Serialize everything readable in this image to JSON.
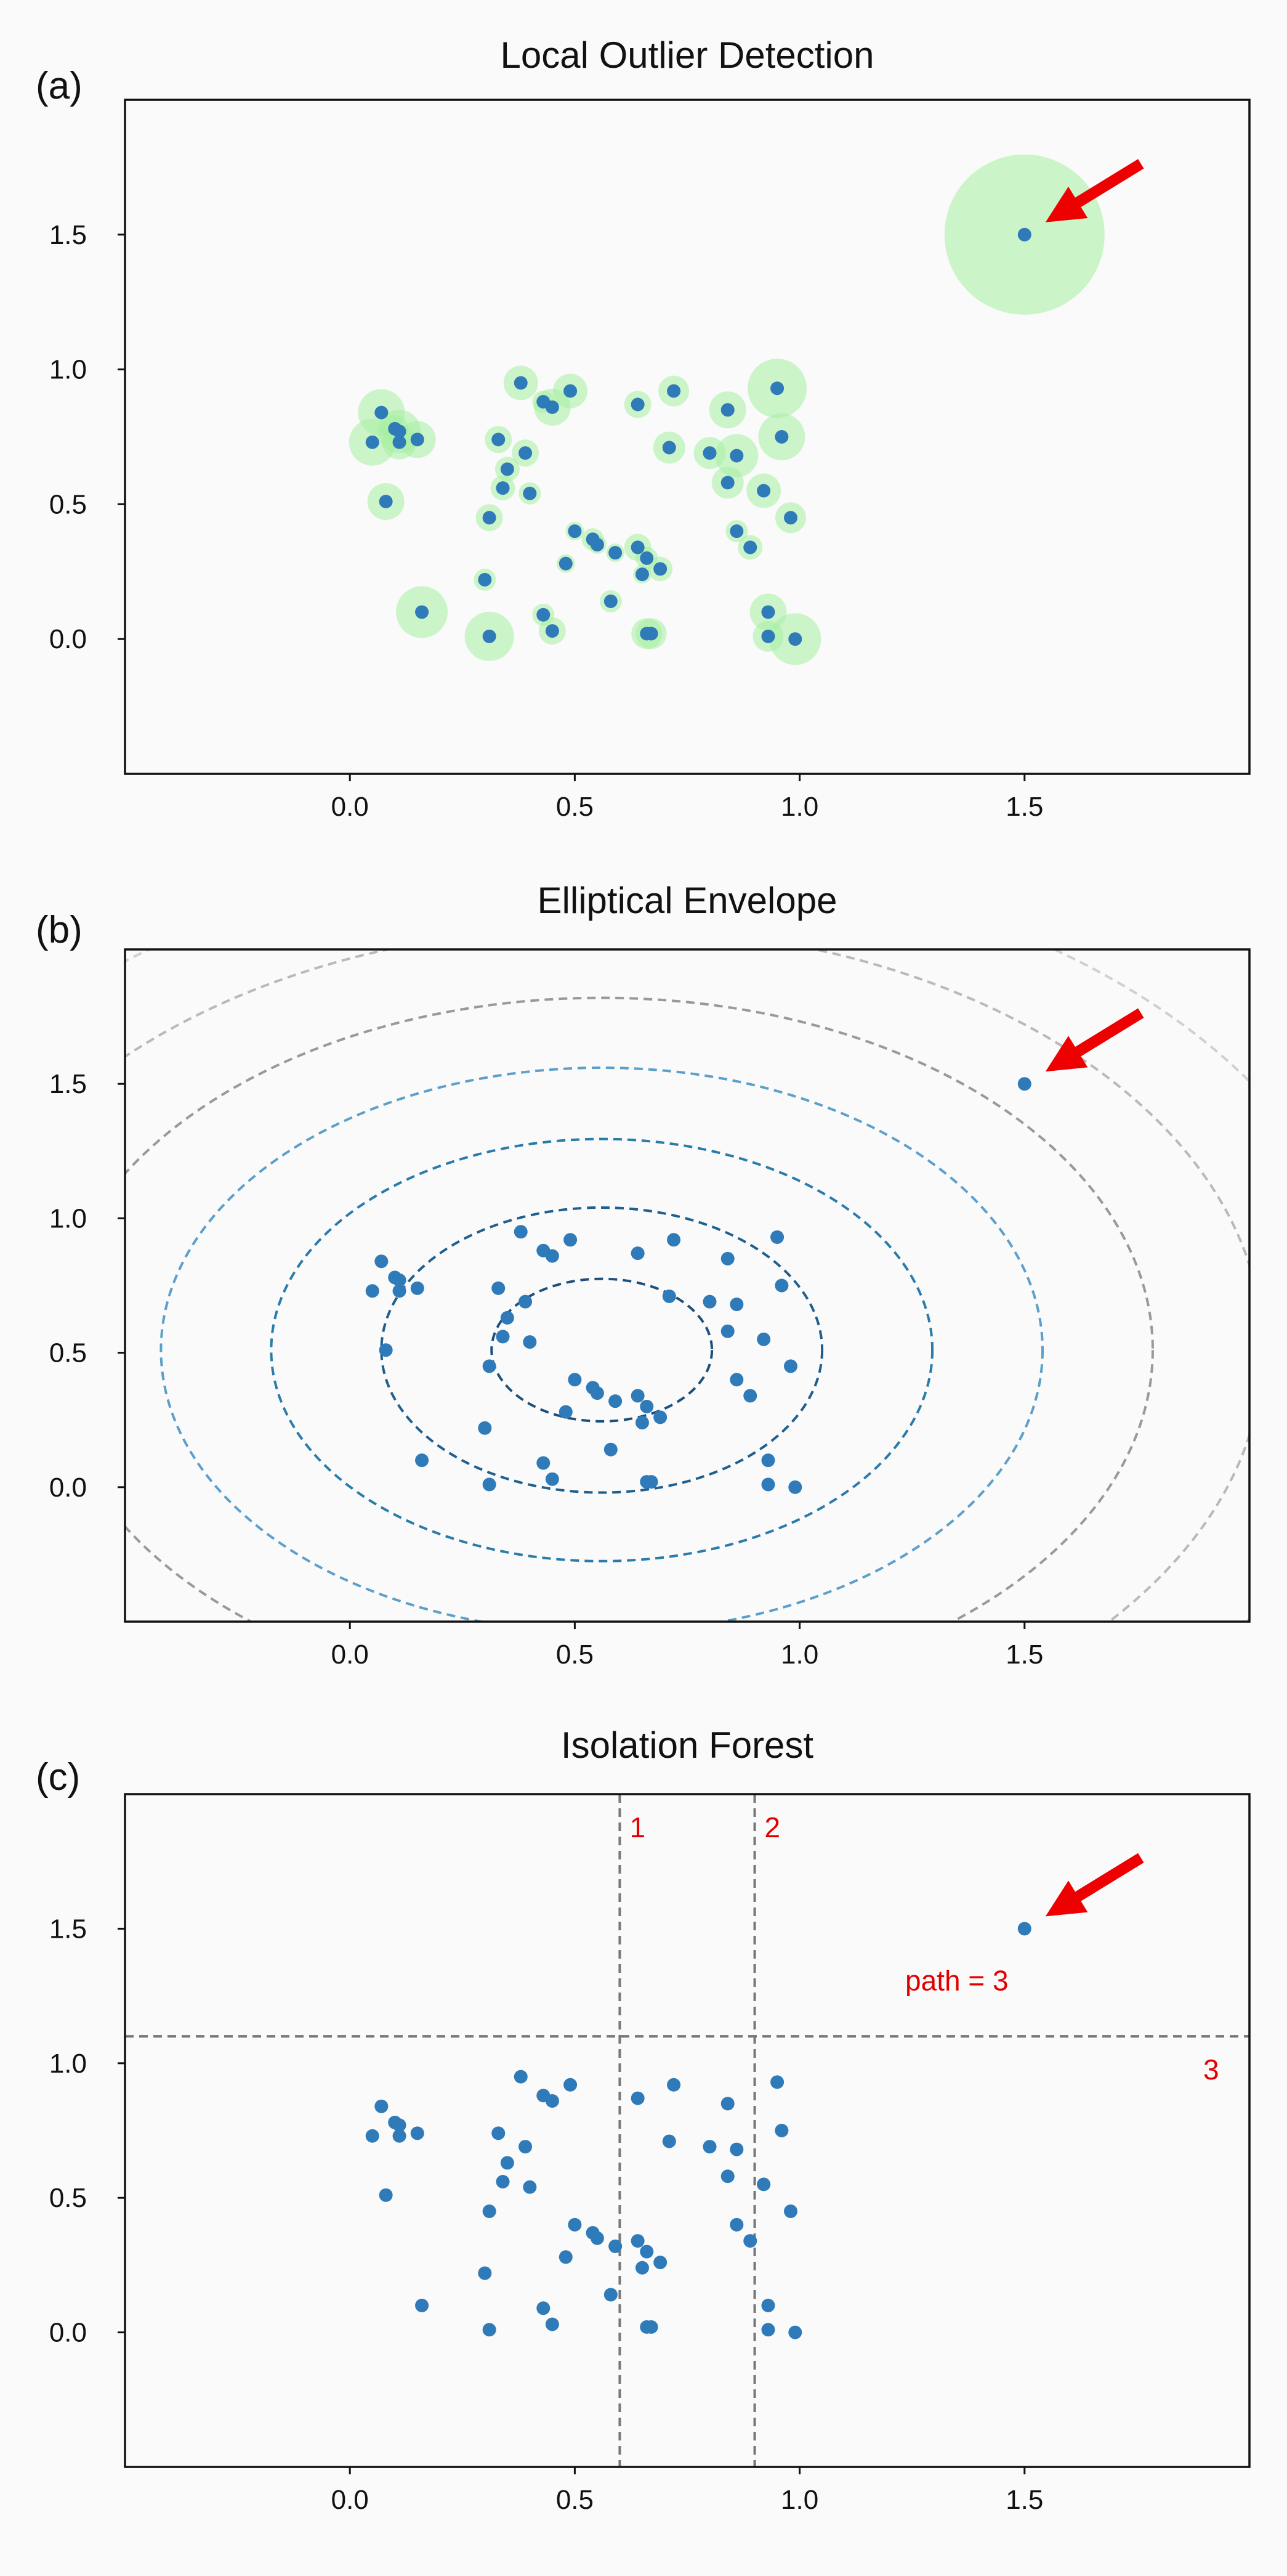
{
  "points": [
    [
      0.05,
      0.73
    ],
    [
      0.07,
      0.84
    ],
    [
      0.08,
      0.51
    ],
    [
      0.1,
      0.78
    ],
    [
      0.11,
      0.73
    ],
    [
      0.11,
      0.77
    ],
    [
      0.15,
      0.74
    ],
    [
      0.16,
      0.1
    ],
    [
      0.3,
      0.22
    ],
    [
      0.31,
      0.45
    ],
    [
      0.31,
      0.01
    ],
    [
      0.33,
      0.74
    ],
    [
      0.34,
      0.56
    ],
    [
      0.35,
      0.63
    ],
    [
      0.38,
      0.95
    ],
    [
      0.39,
      0.69
    ],
    [
      0.4,
      0.54
    ],
    [
      0.43,
      0.09
    ],
    [
      0.43,
      0.88
    ],
    [
      0.45,
      0.03
    ],
    [
      0.45,
      0.86
    ],
    [
      0.48,
      0.28
    ],
    [
      0.49,
      0.92
    ],
    [
      0.5,
      0.4
    ],
    [
      0.54,
      0.37
    ],
    [
      0.55,
      0.35
    ],
    [
      0.58,
      0.14
    ],
    [
      0.59,
      0.32
    ],
    [
      0.64,
      0.34
    ],
    [
      0.64,
      0.87
    ],
    [
      0.65,
      0.24
    ],
    [
      0.66,
      0.02
    ],
    [
      0.66,
      0.3
    ],
    [
      0.67,
      0.02
    ],
    [
      0.69,
      0.26
    ],
    [
      0.71,
      0.71
    ],
    [
      0.72,
      0.92
    ],
    [
      0.8,
      0.69
    ],
    [
      0.84,
      0.85
    ],
    [
      0.84,
      0.58
    ],
    [
      0.86,
      0.68
    ],
    [
      0.86,
      0.4
    ],
    [
      0.89,
      0.34
    ],
    [
      0.92,
      0.55
    ],
    [
      0.93,
      0.1
    ],
    [
      0.93,
      0.01
    ],
    [
      0.95,
      0.93
    ],
    [
      0.96,
      0.75
    ],
    [
      0.98,
      0.45
    ],
    [
      0.99,
      0.0
    ],
    [
      1.5,
      1.5
    ]
  ],
  "chart_data": [
    {
      "type": "scatter",
      "panel_label": "(a)",
      "title": "Local Outlier Detection",
      "xlim": [
        -0.5,
        2.0
      ],
      "ylim": [
        -0.5,
        2.0
      ],
      "xticks": [
        0.0,
        0.5,
        1.0,
        1.5
      ],
      "yticks": [
        0.0,
        0.5,
        1.0,
        1.5
      ],
      "tick_labels": {
        "x": [
          "0.0",
          "0.5",
          "1.0",
          "1.5"
        ],
        "y": [
          "0.0",
          "0.5",
          "1.0",
          "1.5"
        ]
      },
      "point_color": "#2f7ab8",
      "halo_color": "#a6eea0",
      "outlier": [
        1.5,
        1.5
      ],
      "arrow_color": "#ee0000"
    },
    {
      "type": "scatter",
      "panel_label": "(b)",
      "title": "Elliptical Envelope",
      "xlim": [
        -0.5,
        2.0
      ],
      "ylim": [
        -0.5,
        2.0
      ],
      "xticks": [
        0.0,
        0.5,
        1.0,
        1.5
      ],
      "yticks": [
        0.0,
        0.5,
        1.0,
        1.5
      ],
      "tick_labels": {
        "x": [
          "0.0",
          "0.5",
          "1.0",
          "1.5"
        ],
        "y": [
          "0.0",
          "0.5",
          "1.0",
          "1.5"
        ]
      },
      "point_color": "#2f7ab8",
      "envelope_center": [
        0.56,
        0.51
      ],
      "envelopes": [
        {
          "rx": 0.245,
          "ry": 0.265,
          "color": "#1c4f7c"
        },
        {
          "rx": 0.49,
          "ry": 0.53,
          "color": "#1e5f8e"
        },
        {
          "rx": 0.735,
          "ry": 0.785,
          "color": "#2a7bab"
        },
        {
          "rx": 0.98,
          "ry": 1.05,
          "color": "#5c9fcb"
        },
        {
          "rx": 1.225,
          "ry": 1.31,
          "color": "#999999"
        },
        {
          "rx": 1.47,
          "ry": 1.575,
          "color": "#b9b9b9"
        },
        {
          "rx": 1.715,
          "ry": 1.84,
          "color": "#d0d0d0"
        }
      ],
      "outlier": [
        1.5,
        1.5
      ],
      "arrow_color": "#ee0000"
    },
    {
      "type": "scatter",
      "panel_label": "(c)",
      "title": "Isolation Forest",
      "xlim": [
        -0.5,
        2.0
      ],
      "ylim": [
        -0.5,
        2.0
      ],
      "xticks": [
        0.0,
        0.5,
        1.0,
        1.5
      ],
      "yticks": [
        0.0,
        0.5,
        1.0,
        1.5
      ],
      "tick_labels": {
        "x": [
          "0.0",
          "0.5",
          "1.0",
          "1.5"
        ],
        "y": [
          "0.0",
          "0.5",
          "1.0",
          "1.5"
        ]
      },
      "point_color": "#2f7ab8",
      "splits": [
        {
          "orientation": "vertical",
          "value": 0.6,
          "label": "1"
        },
        {
          "orientation": "vertical",
          "value": 0.9,
          "label": "2"
        },
        {
          "orientation": "horizontal",
          "value": 1.1,
          "label": "3"
        }
      ],
      "split_color": "#777777",
      "annotation": "path = 3",
      "annotation_color": "#e10000",
      "outlier": [
        1.5,
        1.5
      ],
      "arrow_color": "#ee0000"
    }
  ]
}
